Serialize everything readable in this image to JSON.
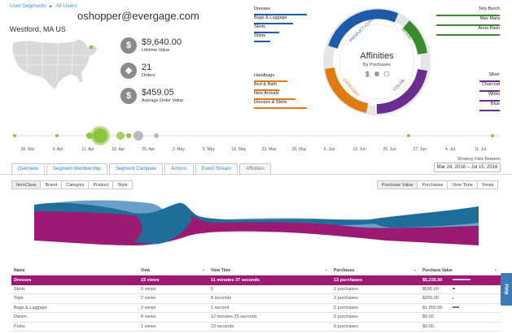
{
  "breadcrumb": [
    "User Segments",
    "All Users"
  ],
  "user": {
    "email": "oshopper@evergage.com",
    "location": "Westford, MA US"
  },
  "stats": [
    {
      "icon": "dollar-icon",
      "glyph": "$",
      "value": "$9,640.00",
      "label": "Lifetime Value"
    },
    {
      "icon": "dropbox-icon",
      "glyph": "❖",
      "value": "21",
      "label": "Orders"
    },
    {
      "icon": "dollar-icon",
      "glyph": "$",
      "value": "$459.05",
      "label": "Average Order Value"
    }
  ],
  "legend_left_top": [
    {
      "label": "Dresses",
      "pct": 0.95,
      "color": "#1f5aa8"
    },
    {
      "label": "Bags & Luggage",
      "pct": 0.7,
      "color": "#1f5aa8"
    },
    {
      "label": "Skirts",
      "pct": 0.45,
      "color": "#1f5aa8"
    },
    {
      "label": "Shirts",
      "pct": 0.3,
      "color": "#1f5aa8"
    }
  ],
  "legend_left_bottom": [
    {
      "label": "Handbags",
      "pct": 0.6,
      "color": "#e07b12"
    },
    {
      "label": "Bed & Bath",
      "pct": 0.45,
      "color": "#e07b12"
    },
    {
      "label": "New Arrivals",
      "pct": 0.75,
      "color": "#e07b12"
    },
    {
      "label": "Dresses & Skirts",
      "pct": 0.95,
      "color": "#e07b12"
    }
  ],
  "legend_right_top": [
    {
      "label": "Tory Burch",
      "pct": 0.95,
      "color": "#3a8a2e"
    },
    {
      "label": "Max Mara",
      "pct": 0.95,
      "color": "#3a8a2e"
    },
    {
      "label": "Anne Klein",
      "pct": 0.95,
      "color": "#3a8a2e"
    }
  ],
  "legend_right_bottom": [
    {
      "label": "Silver",
      "pct": 0.3,
      "color": "#6a2d91"
    },
    {
      "label": "Charcoal",
      "pct": 0.3,
      "color": "#6a2d91"
    },
    {
      "label": "White",
      "pct": 0.3,
      "color": "#6a2d91"
    },
    {
      "label": "Blue",
      "pct": 0.3,
      "color": "#6a2d91"
    }
  ],
  "affinities": {
    "title": "Affinities",
    "subtitle": "By Purchases",
    "ring_labels": [
      "PRODUCT CLASS",
      "BRAND",
      "COLOR",
      "CATEGORY"
    ]
  },
  "timeline_dates": [
    "28. Mar",
    "4. Apr",
    "11. Apr",
    "18. Apr",
    "25. Apr",
    "2. May",
    "9. May",
    "16. May",
    "23. May",
    "30. May",
    "6. Jun",
    "13. Jun",
    "20. Jun",
    "27. Jun",
    "4. Jul",
    "11. Jul"
  ],
  "showing_label": "Showing Visits Between",
  "date_range": "Mar 24, 2016 – Jul 15, 2016",
  "tabs": [
    "Overview",
    "Segment Membership",
    "Segment Compare",
    "Actions",
    "Event Stream",
    "Affinities"
  ],
  "active_tab": "Affinities",
  "dimension_buttons": [
    "ItemClass",
    "Brand",
    "Category",
    "Product",
    "Style"
  ],
  "metric_buttons": [
    "Purchase Value",
    "Purchases",
    "View Time",
    "Views"
  ],
  "table": {
    "headers": [
      "Name",
      "View",
      "View Time",
      "Purchases",
      "Purchase Value"
    ],
    "rows": [
      {
        "name": "Dresses",
        "view": "23 views",
        "time": "11 minutes 37 seconds",
        "purchases": "13 purchases",
        "value": "$5,235.00",
        "bar": 1.0
      },
      {
        "name": "Skirts",
        "view": "0 views",
        "time": "0",
        "purchases": "3 purchases",
        "value": "$595.00",
        "bar": 0.12
      },
      {
        "name": "Tops",
        "view": "2 views",
        "time": "8 seconds",
        "purchases": "2 purchases",
        "value": "$200.00",
        "bar": 0.05
      },
      {
        "name": "Bags & Luggage",
        "view": "2 views",
        "time": "1 second",
        "purchases": "5 purchases",
        "value": "$1,950.00",
        "bar": 0.38
      },
      {
        "name": "Denim",
        "view": "8 views",
        "time": "12 minutes 25 seconds",
        "purchases": "0 purchases",
        "value": "$0.00",
        "bar": 0
      },
      {
        "name": "Polos",
        "view": "1 views",
        "time": "23 seconds",
        "purchases": "0 purchases",
        "value": "$0.00",
        "bar": 0
      }
    ]
  },
  "help_label": "Help"
}
